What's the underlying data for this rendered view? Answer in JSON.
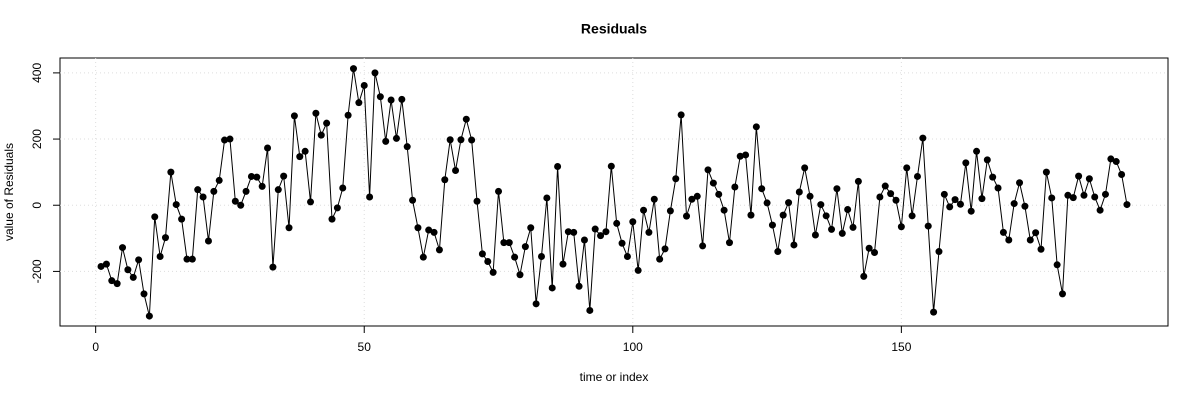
{
  "chart_data": {
    "type": "line",
    "title": "Residuals",
    "xlabel": "time or index",
    "ylabel": "value of Residuals",
    "x": [
      1,
      2,
      3,
      4,
      5,
      6,
      7,
      8,
      9,
      10,
      11,
      12,
      13,
      14,
      15,
      16,
      17,
      18,
      19,
      20,
      21,
      22,
      23,
      24,
      25,
      26,
      27,
      28,
      29,
      30,
      31,
      32,
      33,
      34,
      35,
      36,
      37,
      38,
      39,
      40,
      41,
      42,
      43,
      44,
      45,
      46,
      47,
      48,
      49,
      50,
      51,
      52,
      53,
      54,
      55,
      56,
      57,
      58,
      59,
      60,
      61,
      62,
      63,
      64,
      65,
      66,
      67,
      68,
      69,
      70,
      71,
      72,
      73,
      74,
      75,
      76,
      77,
      78,
      79,
      80,
      81,
      82,
      83,
      84,
      85,
      86,
      87,
      88,
      89,
      90,
      91,
      92,
      93,
      94,
      95,
      96,
      97,
      98,
      99,
      100,
      101,
      102,
      103,
      104,
      105,
      106,
      107,
      108,
      109,
      110,
      111,
      112,
      113,
      114,
      115,
      116,
      117,
      118,
      119,
      120,
      121,
      122,
      123,
      124,
      125,
      126,
      127,
      128,
      129,
      130,
      131,
      132,
      133,
      134,
      135,
      136,
      137,
      138,
      139,
      140,
      141,
      142,
      143,
      144,
      145,
      146,
      147,
      148,
      149,
      150,
      151,
      152,
      153,
      154,
      155,
      156,
      157,
      158,
      159,
      160,
      161,
      162,
      163,
      164,
      165,
      166,
      167,
      168,
      169,
      170,
      171,
      172,
      173,
      174,
      175,
      176,
      177,
      178,
      179,
      180,
      181,
      182,
      183,
      184,
      185,
      186,
      187,
      188,
      189,
      190,
      191,
      192
    ],
    "values": [
      -185,
      -178,
      -228,
      -237,
      -128,
      -195,
      -218,
      -165,
      -268,
      -335,
      -35,
      -155,
      -98,
      100,
      2,
      -42,
      -163,
      -163,
      47,
      25,
      -108,
      42,
      75,
      197,
      200,
      12,
      0,
      42,
      87,
      85,
      57,
      173,
      -187,
      47,
      88,
      -68,
      270,
      147,
      163,
      10,
      278,
      212,
      248,
      -42,
      -8,
      52,
      272,
      413,
      310,
      362,
      25,
      400,
      328,
      193,
      318,
      202,
      320,
      177,
      15,
      -68,
      -157,
      -75,
      -82,
      -135,
      77,
      198,
      105,
      198,
      260,
      197,
      12,
      -147,
      -170,
      -203,
      42,
      -113,
      -113,
      -157,
      -210,
      -125,
      -68,
      -298,
      -155,
      22,
      -250,
      117,
      -178,
      -80,
      -82,
      -245,
      -105,
      -318,
      -72,
      -92,
      -80,
      118,
      -55,
      -115,
      -155,
      -50,
      -197,
      -15,
      -82,
      18,
      -163,
      -132,
      -17,
      80,
      273,
      -33,
      18,
      27,
      -123,
      107,
      67,
      33,
      -15,
      -113,
      55,
      148,
      152,
      -30,
      237,
      50,
      7,
      -60,
      -140,
      -30,
      8,
      -120,
      40,
      113,
      27,
      -90,
      2,
      -32,
      -73,
      50,
      -85,
      -13,
      -67,
      72,
      -215,
      -130,
      -143,
      25,
      58,
      35,
      15,
      -65,
      113,
      -32,
      87,
      203,
      -63,
      -323,
      -140,
      33,
      -5,
      17,
      3,
      128,
      -18,
      163,
      20,
      137,
      85,
      52,
      -82,
      -105,
      5,
      68,
      -3,
      -105,
      -83,
      -133,
      100,
      22,
      -180,
      -268,
      30,
      23,
      88,
      30,
      80,
      25,
      -15,
      33,
      140,
      132,
      93,
      2
    ],
    "color": "#000000",
    "xlim": [
      -6.64,
      199.64
    ],
    "xticks": [
      0,
      50,
      100,
      150
    ],
    "ylim": [
      -365,
      445
    ],
    "yticks": [
      -200,
      0,
      200,
      400
    ],
    "grid": true
  }
}
